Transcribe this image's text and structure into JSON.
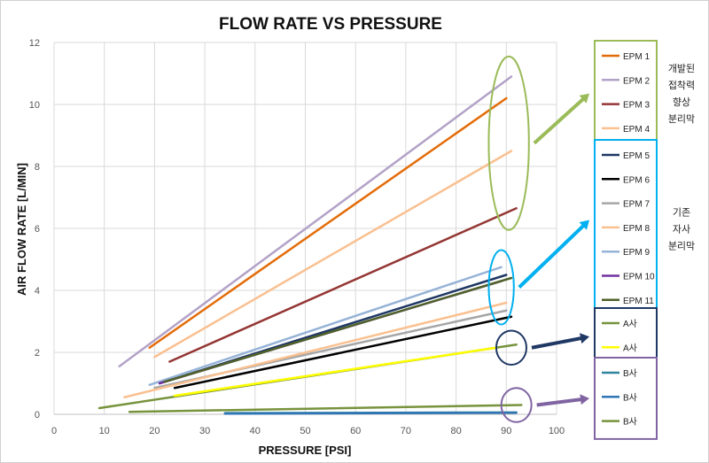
{
  "chart_data": {
    "type": "line",
    "title": "FLOW RATE  VS  PRESSURE",
    "xlabel": "PRESSURE [PSI]",
    "ylabel": "AIR FLOW RATE  [L/MIN]",
    "xlim": [
      0,
      100
    ],
    "ylim": [
      0,
      12
    ],
    "x_ticks": [
      0,
      10,
      20,
      30,
      40,
      50,
      60,
      70,
      80,
      90,
      100
    ],
    "y_ticks": [
      0,
      2,
      4,
      6,
      8,
      10,
      12
    ],
    "grid": true,
    "series": [
      {
        "name": "EPM 1",
        "color": "#E36C09",
        "points": [
          [
            19,
            2.15
          ],
          [
            90,
            10.2
          ]
        ]
      },
      {
        "name": "EPM 2",
        "color": "#B3A2C7",
        "points": [
          [
            13,
            1.55
          ],
          [
            91,
            10.9
          ]
        ]
      },
      {
        "name": "EPM 3",
        "color": "#943634",
        "points": [
          [
            23,
            1.7
          ],
          [
            92,
            6.65
          ]
        ]
      },
      {
        "name": "EPM 4",
        "color": "#FAC090",
        "points": [
          [
            20,
            1.85
          ],
          [
            91,
            8.5
          ]
        ]
      },
      {
        "name": "EPM 5",
        "color": "#1F3864",
        "points": [
          [
            21,
            1.0
          ],
          [
            90,
            4.5
          ]
        ]
      },
      {
        "name": "EPM 6",
        "color": "#000000",
        "points": [
          [
            24,
            0.85
          ],
          [
            91,
            3.15
          ]
        ]
      },
      {
        "name": "EPM 7",
        "color": "#A6A6A6",
        "points": [
          [
            20,
            0.85
          ],
          [
            90,
            3.35
          ]
        ]
      },
      {
        "name": "EPM 8",
        "color": "#FAC090",
        "points": [
          [
            14,
            0.55
          ],
          [
            90,
            3.6
          ]
        ]
      },
      {
        "name": "EPM 9",
        "color": "#95B3D7",
        "points": [
          [
            19,
            0.95
          ],
          [
            89,
            4.75
          ]
        ]
      },
      {
        "name": "EPM 10",
        "color": "#7030A0",
        "points": [
          [
            21,
            1.0
          ],
          [
            89,
            4.3
          ]
        ]
      },
      {
        "name": "EPM 11",
        "color": "#4F6228",
        "points": [
          [
            22,
            1.05
          ],
          [
            91,
            4.4
          ]
        ]
      },
      {
        "name": "A사",
        "color": "#77933C",
        "points": [
          [
            9,
            0.2
          ],
          [
            92,
            2.25
          ]
        ]
      },
      {
        "name": "A사",
        "color": "#FFFF00",
        "points": [
          [
            24,
            0.6
          ],
          [
            88,
            2.15
          ]
        ]
      },
      {
        "name": "B사",
        "color": "#31859C",
        "points": [
          [
            34,
            0.04
          ],
          [
            92,
            0.06
          ]
        ]
      },
      {
        "name": "B사",
        "color": "#2E75B6",
        "points": [
          [
            34,
            0.02
          ],
          [
            92,
            0.05
          ]
        ]
      },
      {
        "name": "B사",
        "color": "#77933C",
        "points": [
          [
            15,
            0.08
          ],
          [
            93,
            0.3
          ]
        ]
      }
    ],
    "legend_groups": [
      {
        "border_color": "#9BBB59",
        "items": [
          0,
          1,
          2,
          3
        ],
        "note": [
          "개발된",
          "접착력",
          "향상",
          "분리막"
        ]
      },
      {
        "border_color": "#00B0F0",
        "items": [
          4,
          5,
          6,
          7,
          8,
          9,
          10
        ],
        "note": [
          "기존",
          "자사",
          "분리막"
        ]
      },
      {
        "border_color": "#1F3864",
        "items": [
          11,
          12
        ],
        "note": []
      },
      {
        "border_color": "#8064A2",
        "items": [
          13,
          14,
          15
        ],
        "note": []
      }
    ],
    "highlights": [
      {
        "shape": "ellipse",
        "color": "#9BBB59",
        "center": [
          90.5,
          8.75
        ],
        "radius": [
          4,
          2.8
        ],
        "arrow_color": "#9BBB59"
      },
      {
        "shape": "ellipse",
        "color": "#00B0F0",
        "center": [
          89,
          4.1
        ],
        "radius": [
          2.5,
          1.2
        ],
        "arrow_color": "#00B0F0"
      },
      {
        "shape": "ellipse",
        "color": "#1F3864",
        "center": [
          91,
          2.15
        ],
        "radius": [
          3,
          0.55
        ],
        "arrow_color": "#1F3864"
      },
      {
        "shape": "ellipse",
        "color": "#8064A2",
        "center": [
          92,
          0.3
        ],
        "radius": [
          3,
          0.55
        ],
        "arrow_color": "#8064A2"
      }
    ]
  }
}
